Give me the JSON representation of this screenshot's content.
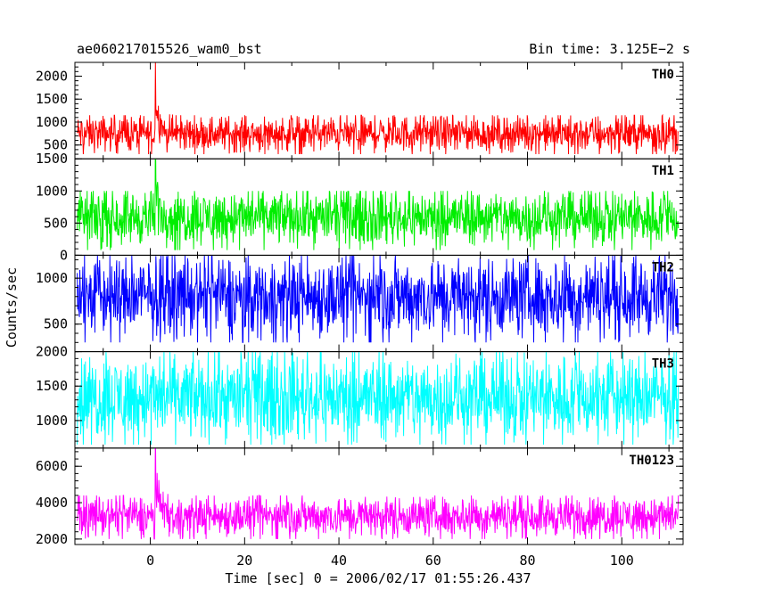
{
  "chart_data": {
    "type": "line",
    "title": "ae060217015526_wam0_bst",
    "subtitle": "Bin time: 3.125E−2 s",
    "xlabel": "Time [sec] 0 = 2006/02/17 01:55:26.437",
    "ylabel": "Counts/sec",
    "xlim": [
      -16,
      113
    ],
    "data_span": [
      -15.5,
      112
    ],
    "x_ticks": [
      "0",
      "20",
      "40",
      "60",
      "80",
      "100"
    ],
    "x_tick_values": [
      0,
      20,
      40,
      60,
      80,
      100
    ],
    "grid": false,
    "panels": [
      {
        "name": "TH0",
        "color": "#ff0000",
        "ylim": [
          200,
          2300
        ],
        "y_ticks": [
          500,
          1000,
          1500,
          2000
        ],
        "y_tick_labels": [
          "500",
          "1000",
          "1500",
          "2000"
        ],
        "baseline_mean": 650,
        "baseline_range": [
          300,
          1150
        ],
        "spike": {
          "x": 1,
          "peak": 2300
        }
      },
      {
        "name": "TH1",
        "color": "#00ee00",
        "ylim": [
          0,
          1500
        ],
        "y_ticks": [
          0,
          500,
          1000,
          1500
        ],
        "y_tick_labels": [
          "0",
          "500",
          "1000",
          "1500"
        ],
        "baseline_mean": 400,
        "baseline_range": [
          80,
          1000
        ],
        "spike": {
          "x": 1,
          "peak": 1500
        }
      },
      {
        "name": "TH2",
        "color": "#0000ff",
        "ylim": [
          200,
          1250
        ],
        "y_ticks": [
          500,
          1000
        ],
        "y_tick_labels": [
          "500",
          "1000"
        ],
        "baseline_mean": 700,
        "baseline_range": [
          300,
          1250
        ],
        "spike": null
      },
      {
        "name": "TH3",
        "color": "#00ffff",
        "ylim": [
          600,
          2000
        ],
        "y_ticks": [
          1000,
          1500,
          2000
        ],
        "y_tick_labels": [
          "1000",
          "1500",
          "2000"
        ],
        "baseline_mean": 1300,
        "baseline_range": [
          650,
          2000
        ],
        "spike": null
      },
      {
        "name": "TH0123",
        "color": "#ff00ff",
        "ylim": [
          1700,
          7000
        ],
        "y_ticks": [
          2000,
          4000,
          6000
        ],
        "y_tick_labels": [
          "2000",
          "4000",
          "6000"
        ],
        "baseline_mean": 3000,
        "baseline_range": [
          2000,
          4400
        ],
        "spike": {
          "x": 1,
          "peak": 7000
        }
      }
    ]
  }
}
